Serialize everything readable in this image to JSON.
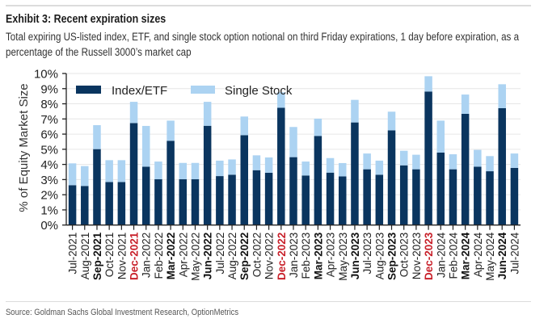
{
  "header": {
    "title": "Exhibit 3: Recent expiration sizes",
    "subtitle": "Total expiring US-listed index, ETF, and single stock option notional on third Friday expirations, 1 day before expiration, as a percentage of the Russell 3000’s market cap"
  },
  "footer": {
    "source": "Source: Goldman Sachs Global Investment Research, OptionMetrics"
  },
  "colors": {
    "index_etf": "#0a355f",
    "single_stock": "#acd3f2",
    "quarterly_label": "#111111",
    "december_label": "#c8202a",
    "gridline": "#e6e6e6"
  },
  "chart_data": {
    "type": "bar",
    "stacked": true,
    "title": "Exhibit 3: Recent expiration sizes",
    "xlabel": "",
    "ylabel": "% of Equity Market Size",
    "ylim": [
      0,
      10
    ],
    "yticks": [
      "0%",
      "1%",
      "2%",
      "3%",
      "4%",
      "5%",
      "6%",
      "7%",
      "8%",
      "9%",
      "10%"
    ],
    "grid": true,
    "legend_position": "top-left",
    "categories": [
      "Jul-2021",
      "Aug-2021",
      "Sep-2021",
      "Oct-2021",
      "Nov-2021",
      "Dec-2021",
      "Jan-2022",
      "Feb-2022",
      "Mar-2022",
      "Apr-2022",
      "May-2022",
      "Jun-2022",
      "Jul-2022",
      "Aug-2022",
      "Sep-2022",
      "Oct-2022",
      "Nov-2022",
      "Dec-2022",
      "Jan-2023",
      "Feb-2023",
      "Mar-2023",
      "Apr-2023",
      "May-2023",
      "Jun-2023",
      "Jul-2023",
      "Aug-2023",
      "Sep-2023",
      "Oct-2023",
      "Nov-2023",
      "Dec-2023",
      "Jan-2024",
      "Feb-2024",
      "Mar-2024",
      "Apr-2024",
      "May-2024",
      "Jun-2024",
      "Jul-2024"
    ],
    "category_style": [
      "normal",
      "normal",
      "bold",
      "normal",
      "normal",
      "red",
      "normal",
      "normal",
      "bold",
      "normal",
      "normal",
      "bold",
      "normal",
      "normal",
      "bold",
      "normal",
      "normal",
      "red",
      "normal",
      "normal",
      "bold",
      "normal",
      "normal",
      "bold",
      "normal",
      "normal",
      "bold",
      "normal",
      "normal",
      "red",
      "normal",
      "normal",
      "bold",
      "normal",
      "normal",
      "bold",
      "normal"
    ],
    "series": [
      {
        "name": "Index/ETF",
        "values": [
          2.63,
          2.58,
          5.01,
          2.84,
          2.84,
          6.73,
          3.85,
          3.02,
          5.56,
          3.02,
          3.02,
          6.55,
          3.23,
          3.32,
          5.93,
          3.62,
          3.45,
          7.74,
          4.48,
          3.27,
          5.88,
          3.46,
          3.21,
          6.77,
          3.68,
          3.32,
          6.25,
          3.94,
          3.68,
          8.81,
          4.78,
          3.68,
          7.34,
          3.85,
          3.55,
          7.71,
          3.77
        ]
      },
      {
        "name": "Single Stock",
        "values": [
          1.44,
          1.31,
          1.58,
          1.44,
          1.44,
          1.4,
          2.69,
          1.17,
          1.33,
          1.08,
          1.08,
          1.58,
          1.02,
          1.01,
          1.23,
          0.98,
          1.01,
          1.02,
          1.99,
          0.92,
          1.14,
          0.96,
          0.88,
          1.49,
          1.04,
          0.93,
          1.23,
          0.96,
          0.96,
          1.01,
          2.11,
          0.99,
          1.27,
          1.11,
          1.0,
          1.58,
          0.95
        ]
      }
    ]
  }
}
